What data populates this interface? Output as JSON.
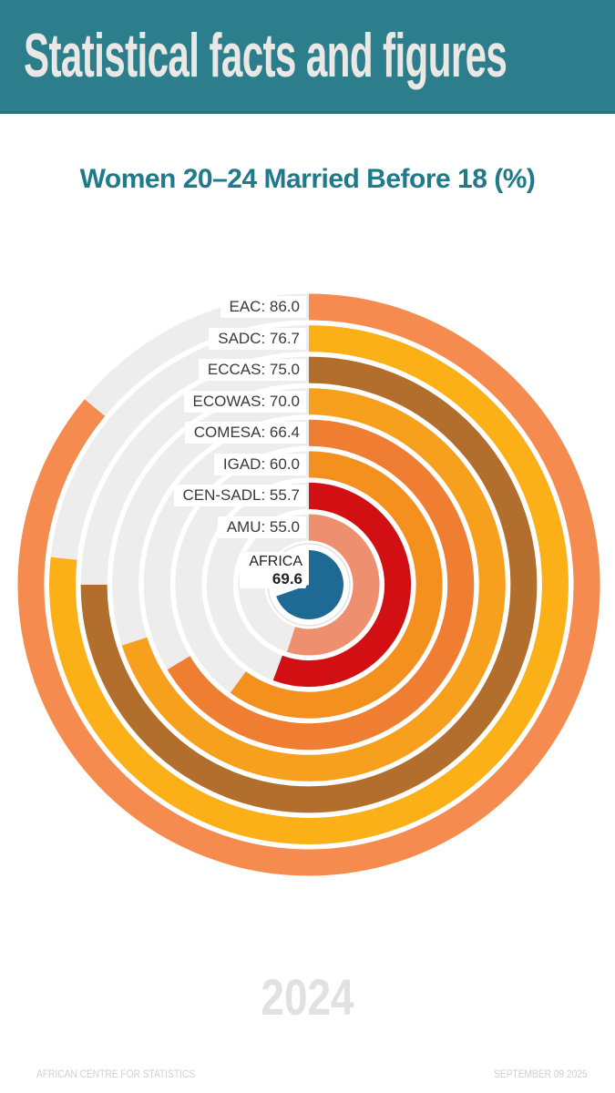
{
  "header": {
    "title": "Statistical facts and figures",
    "bg_color": "#2C7E8C",
    "text_color": "#EAE8E4"
  },
  "page_title": {
    "text": "Women 20–24 Married Before 18 (%)",
    "color": "#1F7A8C"
  },
  "chart_data": {
    "type": "radial_progress_rings",
    "title": "Women 20–24 Married Before 18 (%)",
    "unit": "%",
    "scale_max": 100,
    "start_position": "12-oclock",
    "direction": "clockwise",
    "track_color": "#EDEDED",
    "label_text_color": "#3A3A3A",
    "rings_outer_to_inner": [
      {
        "name": "EAC",
        "value": 86.0,
        "color": "#F58B4E"
      },
      {
        "name": "SADC",
        "value": 76.7,
        "color": "#FBB017"
      },
      {
        "name": "ECCAS",
        "value": 75.0,
        "color": "#B26E2C"
      },
      {
        "name": "ECOWAS",
        "value": 70.0,
        "color": "#F7A01E"
      },
      {
        "name": "COMESA",
        "value": 66.4,
        "color": "#EF7E32"
      },
      {
        "name": "IGAD",
        "value": 60.0,
        "color": "#F4911E"
      },
      {
        "name": "CEN-SADL",
        "value": 55.7,
        "color": "#D21014"
      },
      {
        "name": "AMU",
        "value": 55.0,
        "color": "#EE9070"
      }
    ],
    "center": {
      "name": "AFRICA",
      "value": 69.6,
      "color": "#1E6A94",
      "shape": "pie"
    }
  },
  "watermark": {
    "text": "2024",
    "color": "#E1E1E1"
  },
  "footer": {
    "left": "AFRICAN CENTRE FOR STATISTICS",
    "right": "SEPTEMBER 09 2025",
    "color": "#D0D0D0"
  }
}
